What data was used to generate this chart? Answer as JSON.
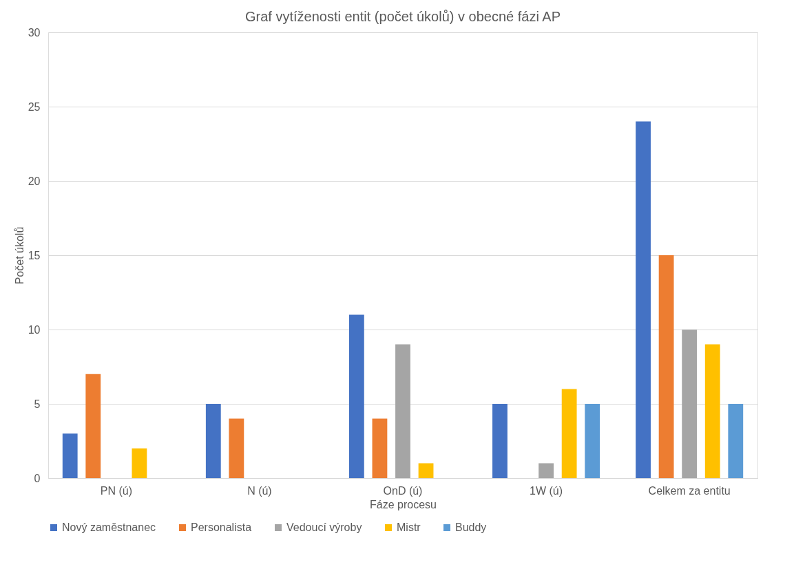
{
  "chart_data": {
    "type": "bar",
    "title": "Graf vytíženosti entit (počet úkolů) v obecné fázi AP",
    "xlabel": "Fáze procesu",
    "ylabel": "Počet úkolů",
    "categories": [
      "PN (ú)",
      "N (ú)",
      "OnD (ú)",
      "1W (ú)",
      "Celkem za entitu"
    ],
    "series": [
      {
        "name": "Nový zaměstnanec",
        "color": "#4472c4",
        "values": [
          3,
          5,
          11,
          5,
          24
        ]
      },
      {
        "name": "Personalista",
        "color": "#ed7d31",
        "values": [
          7,
          4,
          4,
          0,
          15
        ]
      },
      {
        "name": "Vedoucí výroby",
        "color": "#a5a5a5",
        "values": [
          0,
          0,
          9,
          1,
          10
        ]
      },
      {
        "name": "Mistr",
        "color": "#ffc000",
        "values": [
          2,
          0,
          1,
          6,
          9
        ]
      },
      {
        "name": "Buddy",
        "color": "#5b9bd5",
        "values": [
          0,
          0,
          0,
          5,
          5
        ]
      }
    ],
    "ylim": [
      0,
      30
    ],
    "yticks": [
      0,
      5,
      10,
      15,
      20,
      25,
      30
    ],
    "grid": "y",
    "legend": "bottom"
  }
}
